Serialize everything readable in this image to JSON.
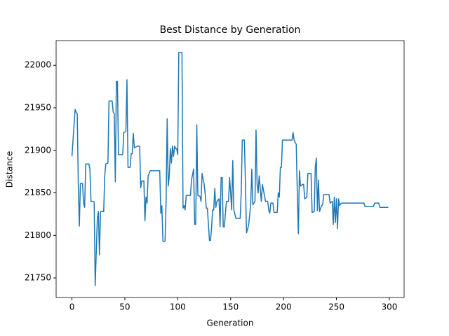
{
  "chart_data": {
    "type": "line",
    "title": "Best Distance by Generation",
    "x_label": "Generation",
    "y_label": "Distance",
    "x": [
      0,
      3,
      4,
      5,
      6,
      7,
      8,
      10,
      11,
      12,
      13,
      16,
      17,
      18,
      20,
      21,
      22,
      24,
      25,
      26,
      27,
      30,
      31,
      32,
      34,
      35,
      38,
      39,
      40,
      41,
      42,
      43,
      44,
      48,
      49,
      51,
      52,
      53,
      55,
      56,
      57,
      58,
      59,
      62,
      64,
      65,
      66,
      68,
      69,
      70,
      71,
      72,
      74,
      83,
      84,
      85,
      86,
      88,
      89,
      90,
      91,
      92,
      93,
      94,
      95,
      96,
      97,
      98,
      99,
      100,
      101,
      104,
      105,
      106,
      107,
      108,
      112,
      113,
      115,
      116,
      117,
      118,
      119,
      121,
      122,
      123,
      125,
      126,
      127,
      128,
      130,
      131,
      132,
      133,
      134,
      135,
      136,
      137,
      139,
      140,
      141,
      142,
      143,
      144,
      146,
      148,
      149,
      150,
      151,
      152,
      153,
      155,
      159,
      160,
      161,
      163,
      164,
      165,
      167,
      169,
      170,
      171,
      173,
      174,
      175,
      176,
      177,
      179,
      180,
      183,
      185,
      186,
      187,
      188,
      190,
      191,
      194,
      195,
      196,
      197,
      198,
      199,
      208,
      209,
      210,
      212,
      213,
      214,
      215,
      216,
      218,
      219,
      220,
      222,
      223,
      226,
      227,
      229,
      230,
      231,
      232,
      233,
      234,
      236,
      237,
      238,
      243,
      244,
      246,
      247,
      248,
      249,
      250,
      251,
      252,
      253,
      254,
      255,
      276,
      277,
      285,
      286,
      290,
      291,
      299
    ],
    "series": [
      {
        "name": "Best Distance",
        "color": "#1f77b4",
        "values": [
          21893,
          21948,
          21945,
          21943,
          21860,
          21811,
          21861,
          21861,
          21838,
          21833,
          21884,
          21884,
          21878,
          21840,
          21840,
          21839,
          21741,
          21820,
          21828,
          21777,
          21828,
          21828,
          21870,
          21884,
          21885,
          21958,
          21958,
          21945,
          21943,
          21863,
          21981,
          21981,
          21895,
          21895,
          21921,
          21922,
          21983,
          21880,
          21880,
          21896,
          21896,
          21920,
          21903,
          21905,
          21905,
          21856,
          21864,
          21864,
          21817,
          21845,
          21838,
          21870,
          21876,
          21876,
          21826,
          21835,
          21793,
          21793,
          21840,
          21937,
          21858,
          21870,
          21902,
          21885,
          21905,
          21893,
          21905,
          21902,
          21902,
          21895,
          22015,
          22015,
          21832,
          21835,
          21830,
          21847,
          21847,
          21865,
          21878,
          21813,
          21813,
          21930,
          21847,
          21846,
          21840,
          21873,
          21860,
          21848,
          21832,
          21832,
          21794,
          21794,
          21810,
          21830,
          21830,
          21855,
          21833,
          21840,
          21843,
          21810,
          21868,
          21868,
          21810,
          21810,
          21840,
          21840,
          21868,
          21850,
          21830,
          21888,
          21830,
          21820,
          21820,
          21850,
          21912,
          21912,
          21860,
          21803,
          21812,
          21837,
          21878,
          21836,
          21840,
          21924,
          21860,
          21850,
          21870,
          21840,
          21860,
          21840,
          21840,
          21830,
          21826,
          21838,
          21838,
          21827,
          21827,
          21850,
          21845,
          21880,
          21880,
          21912,
          21912,
          21921,
          21912,
          21907,
          21850,
          21802,
          21876,
          21858,
          21860,
          21860,
          21843,
          21845,
          21873,
          21873,
          21827,
          21828,
          21880,
          21891,
          21829,
          21865,
          21828,
          21835,
          21836,
          21848,
          21848,
          21838,
          21840,
          21813,
          21845,
          21815,
          21843,
          21808,
          21843,
          21835,
          21837,
          21838,
          21838,
          21834,
          21834,
          21838,
          21838,
          21833,
          21833
        ]
      }
    ],
    "xlim": [
      -14.95,
      313.95
    ],
    "ylim": [
      21727,
      22029
    ],
    "xticks": [
      0,
      50,
      100,
      150,
      200,
      250,
      300
    ],
    "yticks": [
      21750,
      21800,
      21850,
      21900,
      21950,
      22000
    ]
  }
}
